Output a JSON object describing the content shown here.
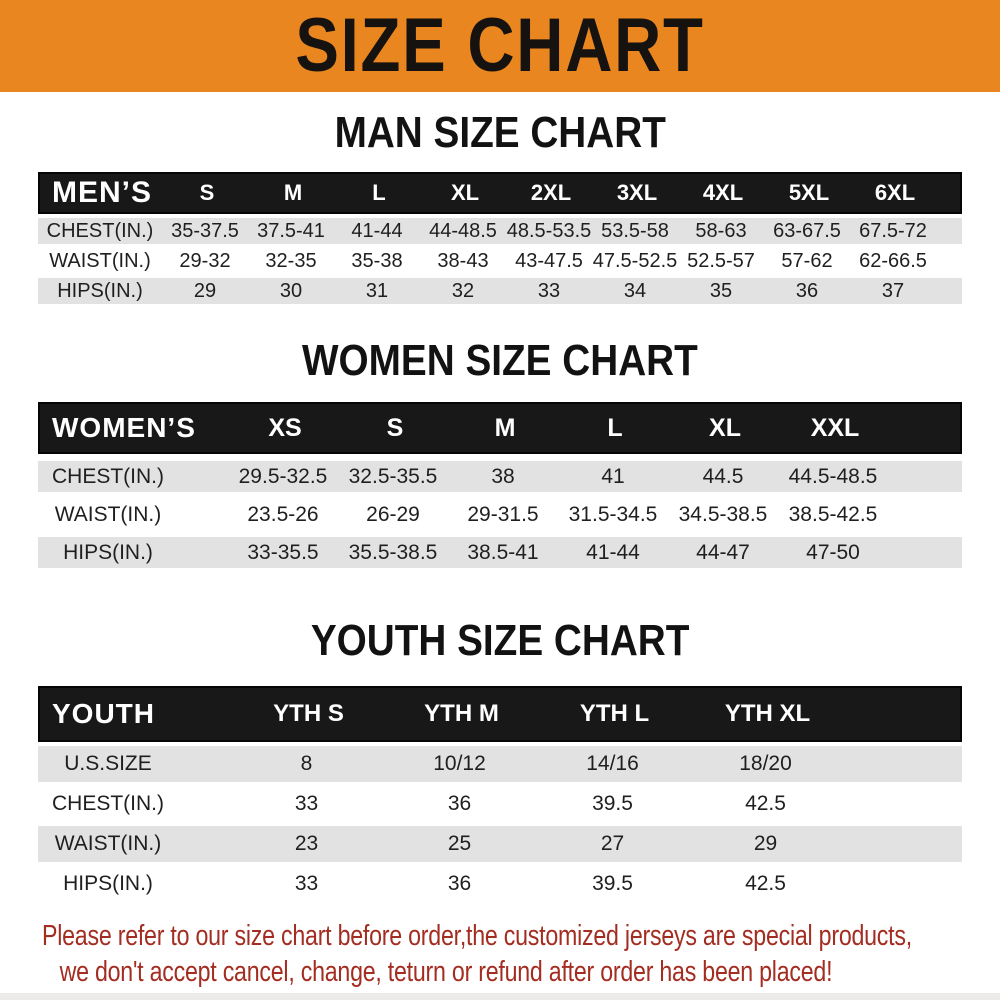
{
  "banner": {
    "title": "SIZE CHART"
  },
  "colors": {
    "banner_bg": "#E98620",
    "banner_text": "#151210",
    "header_bar_bg": "#181818",
    "header_bar_text": "#ffffff",
    "row_shaded_bg": "#E2E2E2",
    "footnote_red": "#A42D22"
  },
  "men": {
    "heading": "MAN SIZE CHART",
    "header_label": "MEN’S",
    "columns": [
      "S",
      "M",
      "L",
      "XL",
      "2XL",
      "3XL",
      "4XL",
      "5XL",
      "6XL"
    ],
    "rows": [
      {
        "label": "CHEST(IN.)",
        "values": [
          "35-37.5",
          "37.5-41",
          "41-44",
          "44-48.5",
          "48.5-53.5",
          "53.5-58",
          "58-63",
          "63-67.5",
          "67.5-72"
        ]
      },
      {
        "label": "WAIST(IN.)",
        "values": [
          "29-32",
          "32-35",
          "35-38",
          "38-43",
          "43-47.5",
          "47.5-52.5",
          "52.5-57",
          "57-62",
          "62-66.5"
        ]
      },
      {
        "label": "HIPS(IN.)",
        "values": [
          "29",
          "30",
          "31",
          "32",
          "33",
          "34",
          "35",
          "36",
          "37"
        ]
      }
    ]
  },
  "women": {
    "heading": "WOMEN SIZE CHART",
    "header_label": "WOMEN’S",
    "columns": [
      "XS",
      "S",
      "M",
      "L",
      "XL",
      "XXL"
    ],
    "rows": [
      {
        "label": "CHEST(IN.)",
        "values": [
          "29.5-32.5",
          "32.5-35.5",
          "38",
          "41",
          "44.5",
          "44.5-48.5"
        ]
      },
      {
        "label": "WAIST(IN.)",
        "values": [
          "23.5-26",
          "26-29",
          "29-31.5",
          "31.5-34.5",
          "34.5-38.5",
          "38.5-42.5"
        ]
      },
      {
        "label": "HIPS(IN.)",
        "values": [
          "33-35.5",
          "35.5-38.5",
          "38.5-41",
          "41-44",
          "44-47",
          "47-50"
        ]
      }
    ]
  },
  "youth": {
    "heading": "YOUTH SIZE CHART",
    "header_label": "YOUTH",
    "columns": [
      "YTH S",
      "YTH M",
      "YTH L",
      "YTH XL"
    ],
    "rows": [
      {
        "label": "U.S.SIZE",
        "values": [
          "8",
          "10/12",
          "14/16",
          "18/20"
        ]
      },
      {
        "label": "CHEST(IN.)",
        "values": [
          "33",
          "36",
          "39.5",
          "42.5"
        ]
      },
      {
        "label": "WAIST(IN.)",
        "values": [
          "23",
          "25",
          "27",
          "29"
        ]
      },
      {
        "label": "HIPS(IN.)",
        "values": [
          "33",
          "36",
          "39.5",
          "42.5"
        ]
      }
    ]
  },
  "footnote": {
    "line1": "Please refer to our size chart before order,the customized jerseys are special products,",
    "line2": "we don't accept cancel, change, teturn or refund after order has been placed!"
  }
}
